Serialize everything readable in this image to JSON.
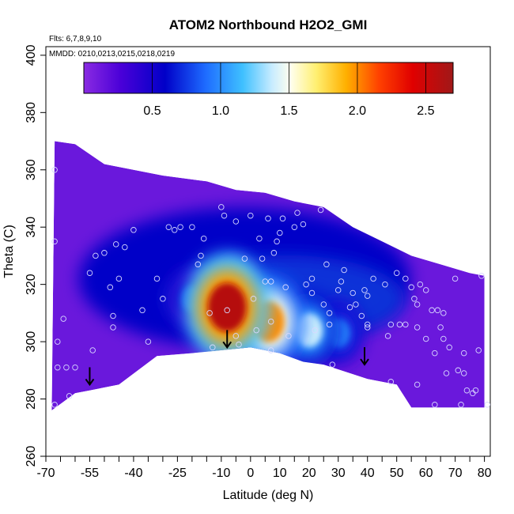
{
  "chart_data": {
    "type": "heatmap",
    "title": "ATOM2 Northbound H2O2_GMI",
    "flights_note": "Flts: 6,7,8,9,10",
    "dates_note": "MMDD: 0210,0213,0215,0218,0219",
    "xlabel": "Latitude (deg N)",
    "ylabel": "Theta (C)",
    "xlim": [
      -70,
      82
    ],
    "ylim": [
      260,
      403
    ],
    "x_ticks": [
      -70,
      -55,
      -40,
      -25,
      -10,
      0,
      10,
      20,
      30,
      40,
      50,
      60,
      70,
      80
    ],
    "x_tick_labels": [
      "-70",
      "-55",
      "-40",
      "-25",
      "-10",
      "0",
      "10",
      "20",
      "30",
      "40",
      "50",
      "60",
      "70",
      "80"
    ],
    "y_ticks": [
      260,
      280,
      300,
      320,
      340,
      360,
      380,
      400
    ],
    "y_tick_labels": [
      "260",
      "280",
      "300",
      "320",
      "340",
      "360",
      "380",
      "400"
    ],
    "colorbar": {
      "min": 0.0,
      "max": 2.7,
      "ticks": [
        0.5,
        1.0,
        1.5,
        2.0,
        2.5
      ],
      "tick_labels": [
        "0.5",
        "1.0",
        "1.5",
        "2.0",
        "2.5"
      ],
      "colors": [
        "#8a2be2",
        "#4a00d8",
        "#0000c8",
        "#1e6cff",
        "#3fc0ff",
        "#e6f4ff",
        "#ffff99",
        "#ffd000",
        "#ff8c00",
        "#ff0000",
        "#a01010"
      ]
    },
    "domain_top": [
      [
        -67,
        370
      ],
      [
        -60,
        369
      ],
      [
        -50,
        362
      ],
      [
        -40,
        360
      ],
      [
        -30,
        358
      ],
      [
        -15,
        356
      ],
      [
        -5,
        353
      ],
      [
        5,
        352
      ],
      [
        15,
        349
      ],
      [
        25,
        347
      ],
      [
        35,
        340
      ],
      [
        45,
        335
      ],
      [
        55,
        330
      ],
      [
        65,
        327
      ],
      [
        75,
        324
      ],
      [
        80,
        323
      ]
    ],
    "domain_bottom": [
      [
        -68,
        276
      ],
      [
        -60,
        282
      ],
      [
        -55,
        283
      ],
      [
        -45,
        285
      ],
      [
        -32,
        295
      ],
      [
        -20,
        296
      ],
      [
        0,
        298
      ],
      [
        10,
        296
      ],
      [
        18,
        293
      ],
      [
        25,
        292
      ],
      [
        40,
        287
      ],
      [
        50,
        285
      ],
      [
        55,
        277
      ],
      [
        80,
        277
      ]
    ],
    "hotspots": [
      {
        "x": -8,
        "y": 312,
        "value": 2.6
      },
      {
        "x": 6,
        "y": 307,
        "value": 2.0
      },
      {
        "x": 20,
        "y": 304,
        "value": 1.4
      },
      {
        "x": -5,
        "y": 320,
        "value": 1.2
      },
      {
        "x": 30,
        "y": 303,
        "value": 1.0
      },
      {
        "x": -20,
        "y": 315,
        "value": 0.8
      }
    ],
    "sample_points": [
      [
        -67,
        360
      ],
      [
        -67,
        335
      ],
      [
        -66,
        300
      ],
      [
        -66,
        291
      ],
      [
        -67,
        278
      ],
      [
        -64,
        308
      ],
      [
        -63,
        291
      ],
      [
        -62,
        281
      ],
      [
        -60,
        291
      ],
      [
        -55,
        324
      ],
      [
        -54,
        297
      ],
      [
        -53,
        330
      ],
      [
        -50,
        331
      ],
      [
        -48,
        319
      ],
      [
        -46,
        334
      ],
      [
        -47,
        309
      ],
      [
        -45,
        322
      ],
      [
        -47,
        305
      ],
      [
        -43,
        333
      ],
      [
        -40,
        339
      ],
      [
        -37,
        311
      ],
      [
        -35,
        300
      ],
      [
        -32,
        322
      ],
      [
        -30,
        315
      ],
      [
        -28,
        340
      ],
      [
        -26,
        339
      ],
      [
        -24,
        340
      ],
      [
        -20,
        340
      ],
      [
        -18,
        327
      ],
      [
        -17,
        330
      ],
      [
        -16,
        336
      ],
      [
        -14,
        310
      ],
      [
        -13,
        298
      ],
      [
        -10,
        347
      ],
      [
        -9,
        344
      ],
      [
        -8,
        311
      ],
      [
        -5,
        342
      ],
      [
        -5,
        302
      ],
      [
        -4,
        299
      ],
      [
        -2,
        329
      ],
      [
        0,
        344
      ],
      [
        1,
        315
      ],
      [
        2,
        304
      ],
      [
        3,
        336
      ],
      [
        4,
        329
      ],
      [
        5,
        321
      ],
      [
        6,
        343
      ],
      [
        7,
        321
      ],
      [
        7,
        297
      ],
      [
        7,
        307
      ],
      [
        8,
        331
      ],
      [
        9,
        335
      ],
      [
        10,
        338
      ],
      [
        11,
        343
      ],
      [
        12,
        319
      ],
      [
        13,
        302
      ],
      [
        15,
        340
      ],
      [
        16,
        345
      ],
      [
        18,
        341
      ],
      [
        19,
        320
      ],
      [
        21,
        317
      ],
      [
        21,
        322
      ],
      [
        22,
        304
      ],
      [
        24,
        346
      ],
      [
        25,
        313
      ],
      [
        26,
        327
      ],
      [
        27,
        310
      ],
      [
        27,
        306
      ],
      [
        28,
        292
      ],
      [
        30,
        318
      ],
      [
        31,
        321
      ],
      [
        32,
        325
      ],
      [
        34,
        312
      ],
      [
        35,
        317
      ],
      [
        36,
        313
      ],
      [
        38,
        309
      ],
      [
        39,
        318
      ],
      [
        40,
        316
      ],
      [
        40,
        305
      ],
      [
        40,
        306
      ],
      [
        42,
        322
      ],
      [
        46,
        320
      ],
      [
        47,
        302
      ],
      [
        48,
        306
      ],
      [
        48,
        286
      ],
      [
        50,
        324
      ],
      [
        51,
        306
      ],
      [
        53,
        322
      ],
      [
        53,
        306
      ],
      [
        55,
        319
      ],
      [
        56,
        315
      ],
      [
        57,
        313
      ],
      [
        57,
        305
      ],
      [
        57,
        285
      ],
      [
        58,
        320
      ],
      [
        60,
        318
      ],
      [
        60,
        301
      ],
      [
        62,
        311
      ],
      [
        63,
        296
      ],
      [
        63,
        278
      ],
      [
        64,
        311
      ],
      [
        65,
        305
      ],
      [
        66,
        310
      ],
      [
        66,
        301
      ],
      [
        67,
        289
      ],
      [
        68,
        298
      ],
      [
        70,
        322
      ],
      [
        71,
        290
      ],
      [
        72,
        278
      ],
      [
        73,
        296
      ],
      [
        73,
        289
      ],
      [
        74,
        283
      ],
      [
        76,
        282
      ],
      [
        77,
        283
      ],
      [
        78,
        297
      ],
      [
        79,
        323
      ],
      [
        81,
        278
      ]
    ],
    "arrows": [
      [
        -55,
        285
      ],
      [
        -8,
        298
      ],
      [
        39,
        292
      ]
    ]
  }
}
